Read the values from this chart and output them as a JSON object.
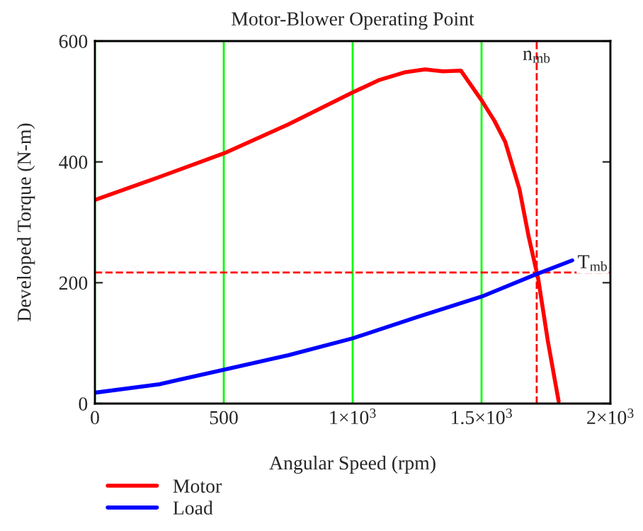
{
  "chart_data": {
    "type": "line",
    "title": "Motor-Blower Operating Point",
    "xlabel": "Angular Speed (rpm)",
    "ylabel": "Developed Torque (N-m)",
    "series": [
      {
        "name": "Motor",
        "color": "#ff0000",
        "x": [
          0,
          250,
          500,
          750,
          1000,
          1100,
          1200,
          1280,
          1350,
          1420,
          1500,
          1550,
          1592,
          1647,
          1683,
          1720,
          1757,
          1799
        ],
        "values": [
          337,
          375,
          414,
          462,
          515,
          535,
          548,
          553,
          550,
          551,
          502,
          468,
          433,
          355,
          276,
          206,
          104,
          4
        ]
      },
      {
        "name": "Load",
        "color": "#0000ff",
        "x": [
          0,
          250,
          500,
          750,
          1000,
          1250,
          1500,
          1700,
          1852
        ],
        "values": [
          18,
          32,
          56,
          80,
          108,
          143,
          177,
          212,
          237
        ]
      }
    ],
    "xlim": [
      0,
      2000
    ],
    "ylim": [
      0,
      600
    ],
    "xticks": [
      0,
      500,
      {
        "value": 1000,
        "label": "1×10$^{3}$"
      },
      {
        "value": 1500,
        "label": "1.5×10$^{3}$"
      },
      {
        "value": 2000,
        "label": "2×10$^{3}$"
      }
    ],
    "yticks": [
      0,
      200,
      400,
      600
    ],
    "grid": "x",
    "ref_lines": [
      {
        "axis": "x",
        "value": 1714,
        "label": "n$_{mb}$",
        "color": "#ff0000",
        "line_style": "dashed"
      },
      {
        "axis": "y",
        "value": 217,
        "label": "T$_{mb}$",
        "color": "#ff0000",
        "line_style": "dashed"
      }
    ],
    "legend": "bottom left",
    "line_style": "solid",
    "marker": "none"
  }
}
